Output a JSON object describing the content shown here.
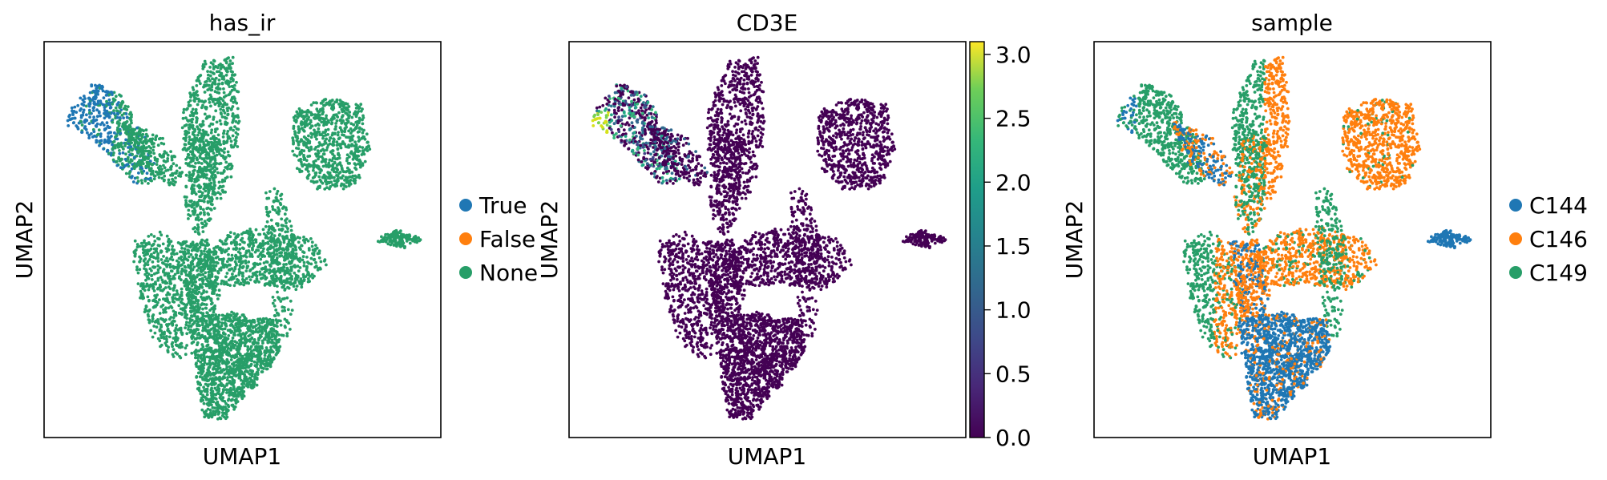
{
  "figure": {
    "title": ""
  },
  "chart_data": [
    {
      "type": "scatter",
      "title": "has_ir",
      "xlabel": "UMAP1",
      "ylabel": "UMAP2",
      "grid": false,
      "show_ticks": false,
      "legend": {
        "placement": "right",
        "entries": [
          {
            "name": "True",
            "color": "#1f77b4"
          },
          {
            "name": "False",
            "color": "#ff7f0e"
          },
          {
            "name": "None",
            "color": "#279e68"
          }
        ]
      },
      "series": [
        {
          "name": "True",
          "color": "#1f77b4",
          "region": "upper-left arm",
          "share": 0.04
        },
        {
          "name": "False",
          "color": "#ff7f0e",
          "region": "none visible",
          "share": 0.0
        },
        {
          "name": "None",
          "color": "#279e68",
          "region": "all clusters",
          "share": 0.96
        }
      ]
    },
    {
      "type": "scatter",
      "title": "CD3E",
      "xlabel": "UMAP1",
      "ylabel": "UMAP2",
      "grid": false,
      "show_ticks": false,
      "colorbar": {
        "colormap": "viridis",
        "range": [
          0.0,
          3.1
        ],
        "tick_labels": [
          "0.0",
          "0.5",
          "1.0",
          "1.5",
          "2.0",
          "2.5",
          "3.0"
        ],
        "tick_values": [
          0.0,
          0.5,
          1.0,
          1.5,
          2.0,
          2.5,
          3.0
        ]
      },
      "background_color": "#440154",
      "high_expression_region": "upper-left arm",
      "high_expression_max": 3.0
    },
    {
      "type": "scatter",
      "title": "sample",
      "xlabel": "UMAP1",
      "ylabel": "UMAP2",
      "grid": false,
      "show_ticks": false,
      "legend": {
        "placement": "right",
        "entries": [
          {
            "name": "C144",
            "color": "#1f77b4"
          },
          {
            "name": "C146",
            "color": "#ff7f0e"
          },
          {
            "name": "C149",
            "color": "#279e68"
          }
        ]
      },
      "series": [
        {
          "name": "C144",
          "color": "#1f77b4",
          "region": "bottom cluster, right island"
        },
        {
          "name": "C146",
          "color": "#ff7f0e",
          "region": "upper-right cluster, center body"
        },
        {
          "name": "C149",
          "color": "#279e68",
          "region": "upper arms, left lobes"
        }
      ]
    }
  ]
}
